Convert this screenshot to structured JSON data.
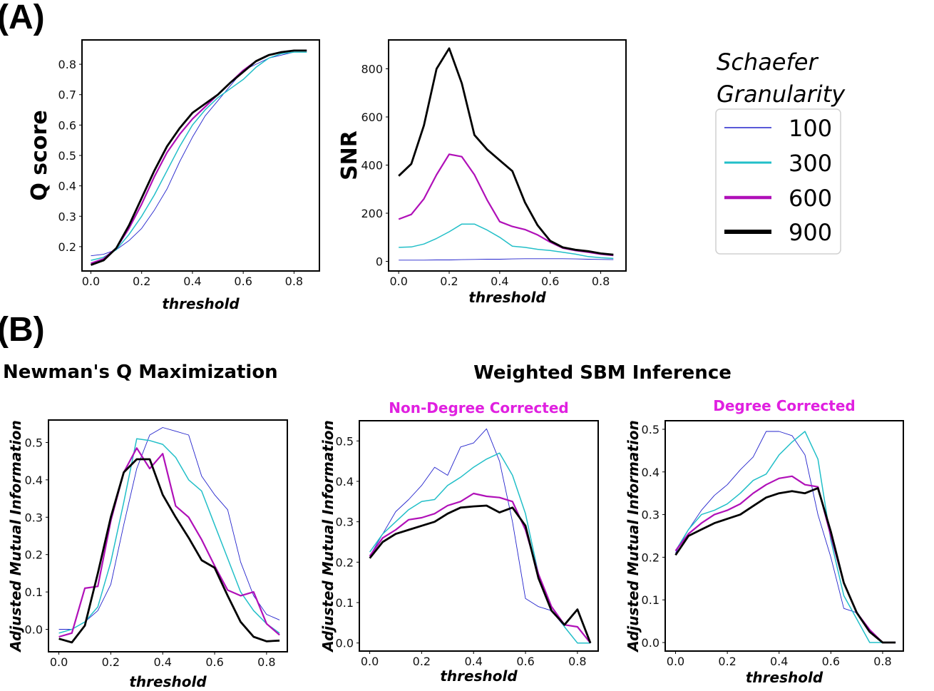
{
  "panels": {
    "a": "(A)",
    "b": "(B)"
  },
  "section_b": {
    "left_title": "Newman's Q Maximization",
    "right_title": "Weighted SBM Inference"
  },
  "legend": {
    "title_line1": "Schaefer",
    "title_line2": "Granularity",
    "entries": [
      {
        "label": "100",
        "color": "#2222cc"
      },
      {
        "label": "300",
        "color": "#22bfc8"
      },
      {
        "label": "600",
        "color": "#b010b8"
      },
      {
        "label": "900",
        "color": "#000000"
      }
    ]
  },
  "chart_data": [
    {
      "id": "qscore",
      "type": "line",
      "title": "",
      "xlabel": "threshold",
      "ylabel": "Q score",
      "xlim": [
        -0.035,
        0.9
      ],
      "ylim": [
        0.12,
        0.88
      ],
      "xticks": [
        0.0,
        0.2,
        0.4,
        0.6,
        0.8
      ],
      "yticks": [
        0.2,
        0.3,
        0.4,
        0.5,
        0.6,
        0.7,
        0.8
      ],
      "x": [
        0.0,
        0.05,
        0.1,
        0.15,
        0.2,
        0.25,
        0.3,
        0.35,
        0.4,
        0.45,
        0.5,
        0.55,
        0.6,
        0.65,
        0.7,
        0.75,
        0.8,
        0.85
      ],
      "series": [
        {
          "name": "100",
          "values": [
            0.17,
            0.175,
            0.19,
            0.22,
            0.26,
            0.32,
            0.39,
            0.48,
            0.56,
            0.63,
            0.68,
            0.73,
            0.78,
            0.8,
            0.82,
            0.83,
            0.84,
            0.84
          ]
        },
        {
          "name": "300",
          "values": [
            0.155,
            0.165,
            0.19,
            0.24,
            0.3,
            0.37,
            0.45,
            0.53,
            0.6,
            0.65,
            0.69,
            0.72,
            0.75,
            0.79,
            0.82,
            0.835,
            0.84,
            0.84
          ]
        },
        {
          "name": "600",
          "values": [
            0.145,
            0.16,
            0.195,
            0.26,
            0.34,
            0.43,
            0.51,
            0.57,
            0.62,
            0.66,
            0.7,
            0.74,
            0.78,
            0.81,
            0.83,
            0.84,
            0.845,
            0.845
          ]
        },
        {
          "name": "900",
          "values": [
            0.14,
            0.155,
            0.195,
            0.27,
            0.36,
            0.45,
            0.53,
            0.59,
            0.64,
            0.67,
            0.7,
            0.74,
            0.775,
            0.81,
            0.83,
            0.84,
            0.845,
            0.845
          ]
        }
      ]
    },
    {
      "id": "snr",
      "type": "line",
      "title": "",
      "xlabel": "threshold",
      "ylabel": "SNR",
      "xlim": [
        -0.04,
        0.9
      ],
      "ylim": [
        -40,
        920
      ],
      "xticks": [
        0.0,
        0.2,
        0.4,
        0.6,
        0.8
      ],
      "yticks": [
        0,
        200,
        400,
        600,
        800
      ],
      "x": [
        0.0,
        0.05,
        0.1,
        0.15,
        0.2,
        0.25,
        0.3,
        0.35,
        0.4,
        0.45,
        0.5,
        0.55,
        0.6,
        0.65,
        0.7,
        0.75,
        0.8,
        0.85
      ],
      "series": [
        {
          "name": "100",
          "values": [
            5,
            5,
            5,
            6,
            6,
            7,
            8,
            9,
            9,
            10,
            11,
            11,
            11,
            11,
            10,
            9,
            8,
            7
          ]
        },
        {
          "name": "300",
          "values": [
            58,
            60,
            72,
            95,
            123,
            155,
            155,
            130,
            100,
            63,
            58,
            50,
            45,
            38,
            30,
            20,
            15,
            12
          ]
        },
        {
          "name": "600",
          "values": [
            175,
            195,
            260,
            360,
            445,
            435,
            360,
            255,
            165,
            145,
            132,
            110,
            80,
            55,
            45,
            38,
            30,
            25
          ]
        },
        {
          "name": "900",
          "values": [
            355,
            405,
            565,
            800,
            885,
            740,
            525,
            465,
            420,
            375,
            245,
            150,
            85,
            58,
            48,
            42,
            33,
            28
          ]
        }
      ]
    },
    {
      "id": "newman",
      "type": "line",
      "title": "",
      "xlabel": "threshold",
      "ylabel": "Adjusted Mutual Information",
      "xlim": [
        -0.04,
        0.88
      ],
      "ylim": [
        -0.06,
        0.56
      ],
      "xticks": [
        0.0,
        0.2,
        0.4,
        0.6,
        0.8
      ],
      "yticks": [
        0.0,
        0.1,
        0.2,
        0.3,
        0.4,
        0.5
      ],
      "x": [
        0.0,
        0.05,
        0.1,
        0.15,
        0.2,
        0.25,
        0.3,
        0.35,
        0.4,
        0.45,
        0.5,
        0.55,
        0.6,
        0.65,
        0.7,
        0.75,
        0.8,
        0.85
      ],
      "series": [
        {
          "name": "100",
          "values": [
            0.0,
            0.0,
            0.02,
            0.05,
            0.12,
            0.28,
            0.43,
            0.52,
            0.54,
            0.53,
            0.52,
            0.41,
            0.36,
            0.32,
            0.18,
            0.09,
            0.04,
            0.025
          ]
        },
        {
          "name": "300",
          "values": [
            -0.01,
            0.0,
            0.02,
            0.06,
            0.18,
            0.34,
            0.51,
            0.505,
            0.495,
            0.46,
            0.4,
            0.37,
            0.28,
            0.19,
            0.1,
            0.05,
            0.015,
            -0.01
          ]
        },
        {
          "name": "600",
          "values": [
            -0.02,
            -0.01,
            0.11,
            0.115,
            0.29,
            0.42,
            0.485,
            0.43,
            0.47,
            0.33,
            0.3,
            0.24,
            0.17,
            0.105,
            0.09,
            0.1,
            0.015,
            -0.015
          ]
        },
        {
          "name": "900",
          "values": [
            -0.025,
            -0.035,
            0.01,
            0.15,
            0.3,
            0.42,
            0.455,
            0.455,
            0.36,
            0.3,
            0.245,
            0.185,
            0.165,
            0.09,
            0.02,
            -0.02,
            -0.032,
            -0.03
          ]
        }
      ]
    },
    {
      "id": "sbm_ndc",
      "type": "line",
      "title": "Non-Degree Corrected",
      "xlabel": "threshold",
      "ylabel": "Adjusted Mutual Information",
      "xlim": [
        -0.04,
        0.88
      ],
      "ylim": [
        -0.02,
        0.55
      ],
      "xticks": [
        0.0,
        0.2,
        0.4,
        0.6,
        0.8
      ],
      "yticks": [
        0.0,
        0.1,
        0.2,
        0.3,
        0.4,
        0.5
      ],
      "x": [
        0.0,
        0.05,
        0.1,
        0.15,
        0.2,
        0.25,
        0.3,
        0.35,
        0.4,
        0.45,
        0.5,
        0.55,
        0.6,
        0.65,
        0.7,
        0.75,
        0.8,
        0.85
      ],
      "series": [
        {
          "name": "100",
          "values": [
            0.215,
            0.27,
            0.325,
            0.355,
            0.39,
            0.435,
            0.415,
            0.485,
            0.495,
            0.53,
            0.45,
            0.3,
            0.11,
            0.09,
            0.08,
            0.04,
            0.0,
            0.0
          ]
        },
        {
          "name": "300",
          "values": [
            0.225,
            0.27,
            0.3,
            0.33,
            0.35,
            0.355,
            0.39,
            0.41,
            0.435,
            0.455,
            0.47,
            0.415,
            0.32,
            0.17,
            0.09,
            0.04,
            0.0,
            0.0
          ]
        },
        {
          "name": "600",
          "values": [
            0.215,
            0.26,
            0.28,
            0.305,
            0.31,
            0.32,
            0.34,
            0.35,
            0.37,
            0.363,
            0.36,
            0.35,
            0.28,
            0.17,
            0.09,
            0.045,
            0.04,
            0.0
          ]
        },
        {
          "name": "900",
          "values": [
            0.21,
            0.25,
            0.27,
            0.28,
            0.29,
            0.3,
            0.32,
            0.335,
            0.338,
            0.34,
            0.323,
            0.335,
            0.29,
            0.16,
            0.08,
            0.045,
            0.083,
            0.0
          ]
        }
      ]
    },
    {
      "id": "sbm_dc",
      "type": "line",
      "title": "Degree Corrected",
      "xlabel": "threshold",
      "ylabel": "Adjusted Mutual Information",
      "xlim": [
        -0.04,
        0.88
      ],
      "ylim": [
        -0.02,
        0.52
      ],
      "xticks": [
        0.0,
        0.2,
        0.4,
        0.6,
        0.8
      ],
      "yticks": [
        0.0,
        0.1,
        0.2,
        0.3,
        0.4,
        0.5
      ],
      "x": [
        0.0,
        0.05,
        0.1,
        0.15,
        0.2,
        0.25,
        0.3,
        0.35,
        0.4,
        0.45,
        0.5,
        0.55,
        0.6,
        0.65,
        0.7,
        0.75,
        0.8,
        0.85
      ],
      "series": [
        {
          "name": "100",
          "values": [
            0.21,
            0.265,
            0.31,
            0.345,
            0.37,
            0.405,
            0.435,
            0.495,
            0.495,
            0.485,
            0.44,
            0.3,
            0.2,
            0.08,
            0.07,
            0.03,
            0.0,
            0.0
          ]
        },
        {
          "name": "300",
          "values": [
            0.215,
            0.265,
            0.3,
            0.31,
            0.325,
            0.35,
            0.38,
            0.395,
            0.44,
            0.47,
            0.495,
            0.43,
            0.24,
            0.11,
            0.055,
            0.0,
            0.0,
            0.0
          ]
        },
        {
          "name": "600",
          "values": [
            0.215,
            0.255,
            0.28,
            0.3,
            0.31,
            0.325,
            0.35,
            0.37,
            0.385,
            0.39,
            0.37,
            0.365,
            0.25,
            0.14,
            0.07,
            0.03,
            0.0,
            0.0
          ]
        },
        {
          "name": "900",
          "values": [
            0.205,
            0.25,
            0.265,
            0.28,
            0.29,
            0.3,
            0.32,
            0.34,
            0.35,
            0.355,
            0.35,
            0.362,
            0.26,
            0.14,
            0.07,
            0.025,
            0.0,
            0.0
          ]
        }
      ]
    }
  ]
}
